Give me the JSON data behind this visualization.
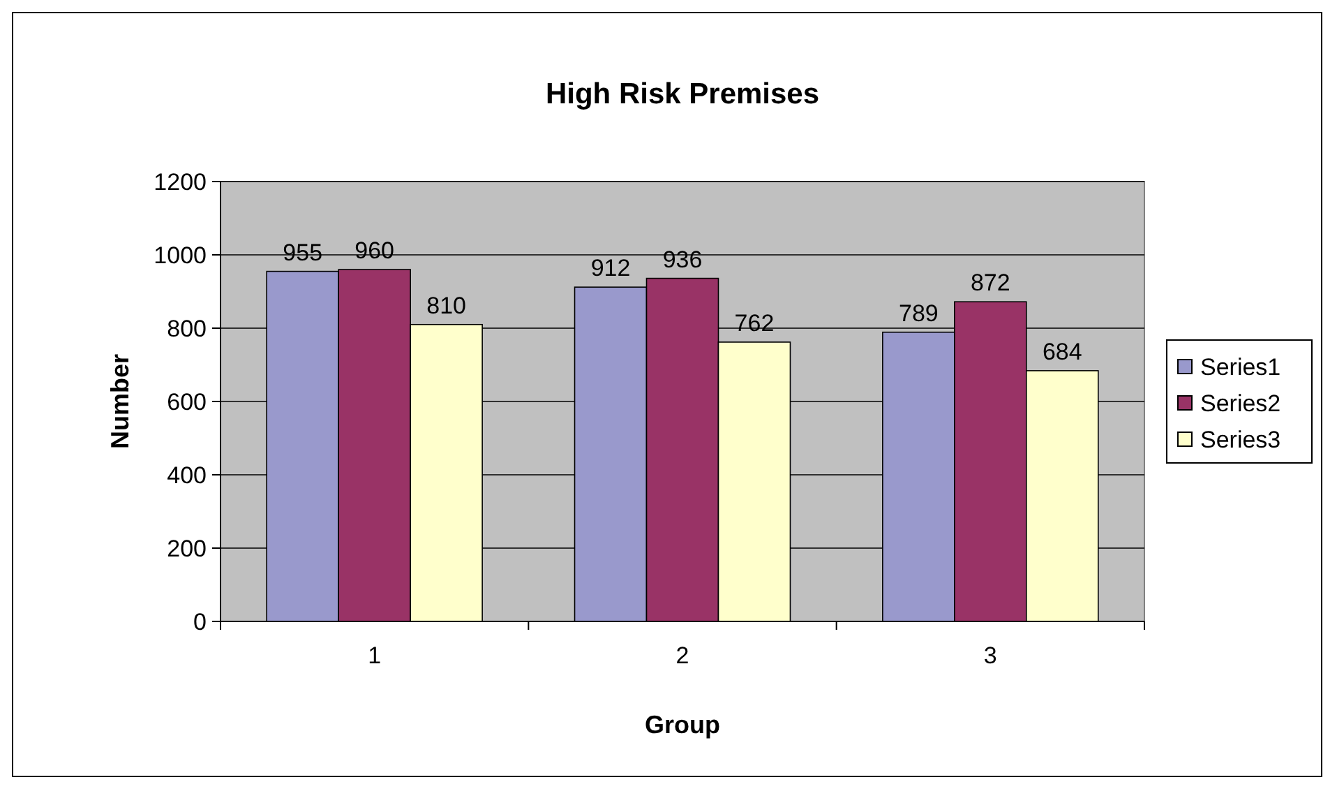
{
  "chart_data": {
    "type": "bar",
    "title": "High Risk Premises",
    "xlabel": "Group",
    "ylabel": "Number",
    "categories": [
      "1",
      "2",
      "3"
    ],
    "series": [
      {
        "name": "Series1",
        "color": "#9999cc",
        "values": [
          955,
          912,
          789
        ]
      },
      {
        "name": "Series2",
        "color": "#993366",
        "values": [
          960,
          936,
          872
        ]
      },
      {
        "name": "Series3",
        "color": "#ffffcc",
        "values": [
          810,
          762,
          684
        ]
      }
    ],
    "ylim": [
      0,
      1200
    ],
    "yticks": [
      0,
      200,
      400,
      600,
      800,
      1000,
      1200
    ],
    "grid": "y",
    "legend": "right",
    "data_labels": true
  }
}
